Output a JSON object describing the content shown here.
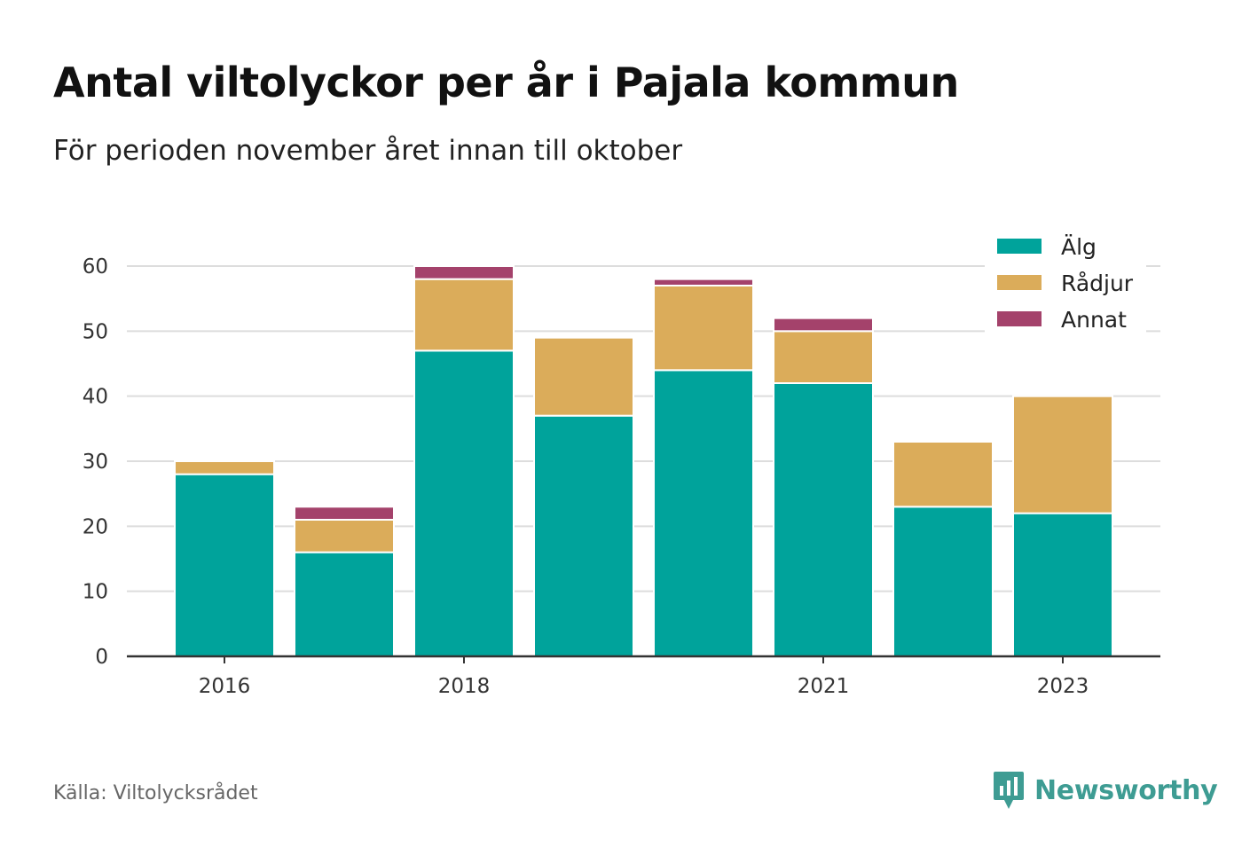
{
  "title": "Antal viltolyckor per år i Pajala kommun",
  "subtitle": "För perioden november året innan till oktober",
  "source": "Källa: Viltolycksrådet",
  "brand": "Newsworthy",
  "colors": {
    "alg": "#00a39b",
    "radjur": "#dbac5a",
    "annat": "#a4426b",
    "grid": "#dddddd",
    "axis": "#333333",
    "brand": "#3e9c93"
  },
  "chart_data": {
    "type": "bar",
    "stacked": true,
    "categories": [
      "2016",
      "2017",
      "2018",
      "2019",
      "2020",
      "2021",
      "2022",
      "2023"
    ],
    "x_tick_labels": [
      "2016",
      "2018",
      "2021",
      "2023"
    ],
    "series": [
      {
        "name": "Älg",
        "values": [
          28,
          16,
          47,
          37,
          44,
          42,
          23,
          22
        ],
        "color": "#00a39b"
      },
      {
        "name": "Rådjur",
        "values": [
          2,
          5,
          11,
          12,
          13,
          8,
          10,
          18
        ],
        "color": "#dbac5a"
      },
      {
        "name": "Annat",
        "values": [
          0,
          2,
          2,
          0,
          1,
          2,
          0,
          0
        ],
        "color": "#a4426b"
      }
    ],
    "yticks": [
      0,
      10,
      20,
      30,
      40,
      50,
      60
    ],
    "ylim": [
      0,
      60
    ],
    "grid": true,
    "legend_position": "top-right"
  }
}
